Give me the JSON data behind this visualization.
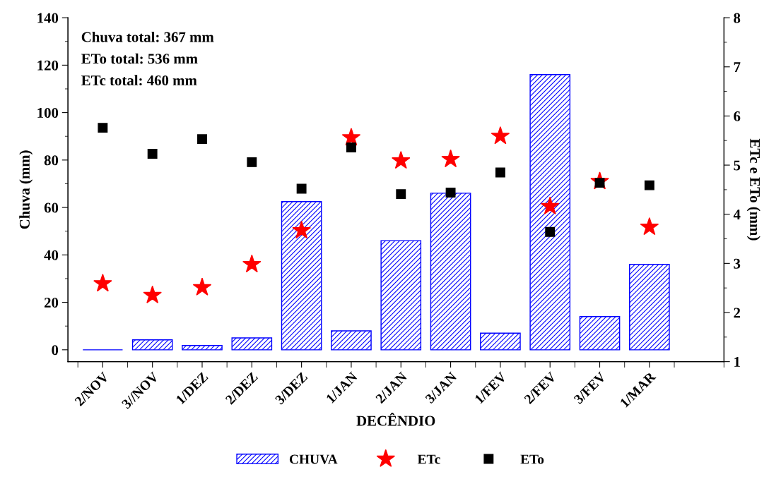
{
  "chart_data": {
    "type": "bar",
    "xlabel": "DECÊNDIO",
    "ylabel": "Chuva (mm)",
    "y2label": "ETc e ETo (mm)",
    "categories": [
      "2/NOV",
      "3//NOV",
      "1/DEZ",
      "2/DEZ",
      "3/DEZ",
      "1/JAN",
      "2/JAN",
      "3/JAN",
      "1/FEV",
      "2/FEV",
      "3/FEV",
      "1/MAR"
    ],
    "series": [
      {
        "name": "CHUVA",
        "color": "#0000ff",
        "values": [
          0,
          4.2,
          1.8,
          5,
          62.5,
          8,
          46,
          66,
          7,
          116,
          14,
          36
        ]
      },
      {
        "name": "ETc",
        "type": "scatter",
        "marker": "star",
        "axis": "y2",
        "color": "#ff0000",
        "values": [
          2.59,
          2.35,
          2.51,
          2.98,
          3.67,
          5.56,
          5.09,
          5.12,
          5.59,
          4.16,
          4.67,
          3.74
        ]
      },
      {
        "name": "ETo",
        "type": "scatter",
        "marker": "square",
        "axis": "y2",
        "color": "#000000",
        "values": [
          5.76,
          5.23,
          5.53,
          5.06,
          4.52,
          5.36,
          4.41,
          4.44,
          4.85,
          3.64,
          4.64,
          4.59
        ]
      }
    ],
    "ylim": [
      -5,
      140
    ],
    "yticks": [
      0,
      20,
      40,
      60,
      80,
      100,
      120,
      140
    ],
    "y2lim": [
      1,
      8
    ],
    "y2ticks": [
      1,
      2,
      3,
      4,
      5,
      6,
      7,
      8
    ],
    "annotations": [
      "Chuva total: 367 mm",
      "ETo total: 536 mm",
      "ETc total: 460 mm"
    ],
    "legend": "bottom",
    "grid": false
  }
}
